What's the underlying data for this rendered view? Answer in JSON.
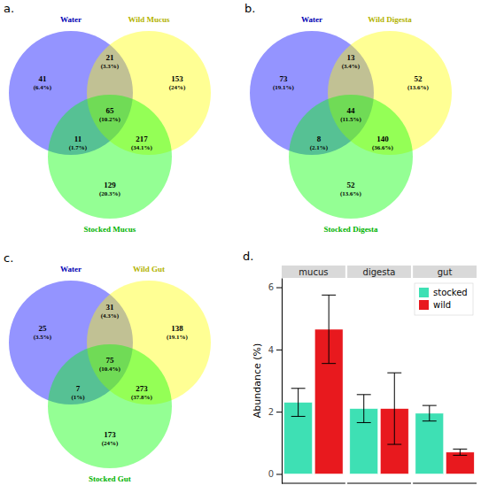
{
  "chart_data": [
    {
      "type": "venn",
      "title": "a.",
      "sets": [
        {
          "name": "Water",
          "color": "#0000ff"
        },
        {
          "name": "Wild Mucus",
          "color": "#ffff00"
        },
        {
          "name": "Stocked Mucus",
          "color": "#00ff00"
        }
      ],
      "regions": [
        [
          0
        ],
        [
          0,
          1
        ],
        [
          1
        ],
        [
          0,
          1,
          2
        ],
        [
          0,
          2
        ],
        [
          1,
          2
        ],
        [
          2
        ]
      ],
      "values": [
        41,
        21,
        153,
        65,
        11,
        217,
        129
      ],
      "percent_labels": [
        "(6.4%)",
        "(3.3%)",
        "(24%)",
        "(10.2%)",
        "(1.7%)",
        "(34.1%)",
        "(20.3%)"
      ]
    },
    {
      "type": "venn",
      "title": "b.",
      "sets": [
        {
          "name": "Water",
          "color": "#0000ff"
        },
        {
          "name": "Wild Digesta",
          "color": "#ffff00"
        },
        {
          "name": "Stocked Digesta",
          "color": "#00ff00"
        }
      ],
      "regions": [
        [
          0
        ],
        [
          0,
          1
        ],
        [
          1
        ],
        [
          0,
          1,
          2
        ],
        [
          0,
          2
        ],
        [
          1,
          2
        ],
        [
          2
        ]
      ],
      "values": [
        73,
        13,
        52,
        44,
        8,
        140,
        52
      ],
      "percent_labels": [
        "(19.1%)",
        "(3.4%)",
        "(13.6%)",
        "(11.5%)",
        "(2.1%)",
        "(36.6%)",
        "(13.6%)"
      ]
    },
    {
      "type": "venn",
      "title": "c.",
      "sets": [
        {
          "name": "Water",
          "color": "#0000ff"
        },
        {
          "name": "Wild Gut",
          "color": "#ffff00"
        },
        {
          "name": "Stocked Gut",
          "color": "#00ff00"
        }
      ],
      "regions": [
        [
          0
        ],
        [
          0,
          1
        ],
        [
          1
        ],
        [
          0,
          1,
          2
        ],
        [
          0,
          2
        ],
        [
          1,
          2
        ],
        [
          2
        ]
      ],
      "values": [
        25,
        31,
        138,
        75,
        7,
        273,
        173
      ],
      "percent_labels": [
        "(3.5%)",
        "(4.3%)",
        "(19.1%)",
        "(10.4%)",
        "(1%)",
        "(37.8%)",
        "(24%)"
      ]
    },
    {
      "type": "bar",
      "title": "d.",
      "categories": [
        "mucus",
        "digesta",
        "gut"
      ],
      "series": [
        {
          "name": "stocked",
          "color": "#3ee0b4",
          "values": [
            2.3,
            2.1,
            1.95
          ],
          "errors": [
            0.45,
            0.45,
            0.25
          ]
        },
        {
          "name": "wild",
          "color": "#e8191e",
          "values": [
            4.65,
            2.1,
            0.7
          ],
          "errors": [
            1.1,
            1.15,
            0.1
          ]
        }
      ],
      "y_label": "Abundance (%)",
      "ylim": [
        -0.3,
        6.3
      ],
      "yticks": [
        0,
        2,
        4,
        6
      ],
      "legend": "top-right",
      "tick_labels": "y",
      "grid": false
    }
  ]
}
